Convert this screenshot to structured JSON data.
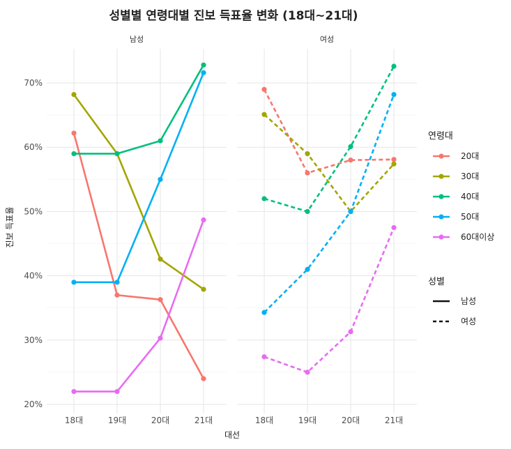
{
  "chart_data": {
    "type": "line",
    "title": "성별별 연령대별 진보 득표율 변화 (18대~21대)",
    "xlabel": "대선",
    "ylabel": "진보 득표율",
    "categories": [
      "18대",
      "19대",
      "20대",
      "21대"
    ],
    "ylim": [
      20,
      75
    ],
    "yticks": [
      "20%",
      "30%",
      "40%",
      "50%",
      "60%",
      "70%"
    ],
    "grid": true,
    "panels": [
      {
        "label": "남성",
        "linestyle": "solid",
        "series": [
          {
            "name": "20대",
            "color": "#F8766D",
            "values": [
              62.2,
              37.0,
              36.3,
              24.0
            ]
          },
          {
            "name": "30대",
            "color": "#A3A500",
            "values": [
              68.2,
              59.0,
              42.6,
              37.9
            ]
          },
          {
            "name": "40대",
            "color": "#00BF7D",
            "values": [
              59.0,
              59.0,
              61.0,
              72.8
            ]
          },
          {
            "name": "50대",
            "color": "#00B0F6",
            "values": [
              39.0,
              39.0,
              55.0,
              71.6
            ]
          },
          {
            "name": "60대이상",
            "color": "#E76BF3",
            "values": [
              22.0,
              22.0,
              30.3,
              48.7
            ]
          }
        ]
      },
      {
        "label": "여성",
        "linestyle": "dashed",
        "series": [
          {
            "name": "20대",
            "color": "#F8766D",
            "values": [
              69.0,
              56.0,
              58.0,
              58.1
            ]
          },
          {
            "name": "30대",
            "color": "#A3A500",
            "values": [
              65.1,
              59.0,
              50.0,
              57.4
            ]
          },
          {
            "name": "40대",
            "color": "#00BF7D",
            "values": [
              52.0,
              50.0,
              60.1,
              72.6
            ]
          },
          {
            "name": "50대",
            "color": "#00B0F6",
            "values": [
              34.3,
              41.0,
              50.0,
              68.2
            ]
          },
          {
            "name": "60대이상",
            "color": "#E76BF3",
            "values": [
              27.4,
              25.0,
              31.3,
              47.5
            ]
          }
        ]
      }
    ],
    "legend": {
      "placement": "right",
      "age_title": "연령대",
      "age_items": [
        {
          "name": "20대",
          "color": "#F8766D"
        },
        {
          "name": "30대",
          "color": "#A3A500"
        },
        {
          "name": "40대",
          "color": "#00BF7D"
        },
        {
          "name": "50대",
          "color": "#00B0F6"
        },
        {
          "name": "60대이상",
          "color": "#E76BF3"
        }
      ],
      "gender_title": "성별",
      "gender_items": [
        {
          "name": "남성",
          "linestyle": "solid"
        },
        {
          "name": "여성",
          "linestyle": "dashed"
        }
      ]
    }
  }
}
